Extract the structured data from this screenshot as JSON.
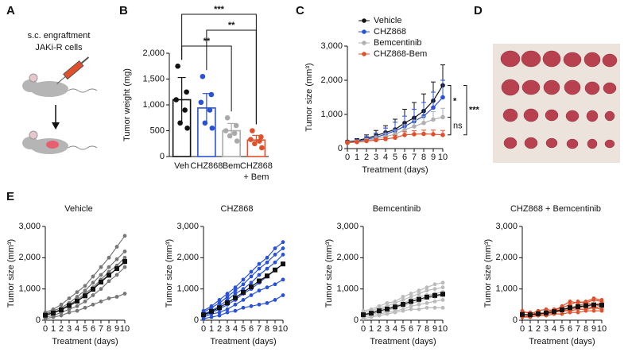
{
  "panel_labels": [
    "A",
    "B",
    "C",
    "D",
    "E"
  ],
  "schematic": {
    "line1": "s.c. engraftment",
    "line2": "JAKi-R cells"
  },
  "chart_data": [
    {
      "type": "bar_dot",
      "ylabel": "Tumor weight (mg)",
      "categories": [
        "Veh",
        "CHZ868",
        "Bem",
        "CHZ868\n+ Bem"
      ],
      "colors": [
        "#111111",
        "#2a52d6",
        "#aaaaaa",
        "#e0502a"
      ],
      "values": [
        1100,
        940,
        500,
        320
      ],
      "errors": [
        430,
        280,
        140,
        90
      ],
      "points": [
        [
          1750,
          1250,
          1100,
          900,
          650,
          550
        ],
        [
          1550,
          1200,
          1050,
          900,
          650,
          550
        ],
        [
          750,
          600,
          500,
          450,
          400,
          300
        ],
        [
          500,
          380,
          330,
          300,
          250,
          170
        ]
      ],
      "ylim": [
        0,
        2000
      ],
      "yticks": [
        0,
        500,
        {
          "value": 1000,
          "label": "1,000"
        },
        {
          "value": 1500,
          "label": "1,500"
        },
        {
          "value": 2000,
          "label": "2,000"
        }
      ],
      "annotations": [
        {
          "text": "***",
          "between": [
            0,
            3
          ]
        },
        {
          "text": "**",
          "between": [
            1,
            3
          ]
        },
        {
          "text": "**",
          "between": [
            0,
            2
          ]
        }
      ]
    },
    {
      "type": "line",
      "xlabel": "Treatment (days)",
      "ylabel": "Tumor size (mm³)",
      "x": [
        0,
        1,
        2,
        3,
        4,
        5,
        6,
        7,
        8,
        9,
        10
      ],
      "xlim": [
        0,
        10
      ],
      "xticks": [
        0,
        1,
        2,
        3,
        4,
        5,
        6,
        7,
        8,
        9,
        10
      ],
      "ylim": [
        0,
        3000
      ],
      "yticks": [
        0,
        {
          "value": 1000,
          "label": "1,000"
        },
        {
          "value": 2000,
          "label": "2,000"
        },
        {
          "value": 3000,
          "label": "3,000"
        }
      ],
      "legend": "upper left",
      "series": [
        {
          "name": "Vehicle",
          "color": "#111111",
          "values": [
            200,
            230,
            300,
            380,
            470,
            560,
            750,
            900,
            1100,
            1400,
            1850
          ],
          "errors": [
            30,
            60,
            100,
            150,
            200,
            300,
            400,
            450,
            500,
            550,
            600
          ]
        },
        {
          "name": "CHZ868",
          "color": "#2a52d6",
          "values": [
            180,
            210,
            270,
            330,
            420,
            520,
            650,
            800,
            950,
            1200,
            1500
          ],
          "errors": [
            30,
            50,
            80,
            120,
            180,
            250,
            300,
            350,
            400,
            450,
            500
          ]
        },
        {
          "name": "Bemcentinib",
          "color": "#b0b0b0",
          "values": [
            180,
            200,
            240,
            290,
            350,
            420,
            550,
            650,
            750,
            850,
            920
          ],
          "errors": [
            30,
            40,
            60,
            80,
            100,
            120,
            150,
            180,
            200,
            230,
            260
          ]
        },
        {
          "name": "CHZ868-Bem",
          "color": "#e0502a",
          "values": [
            170,
            190,
            220,
            250,
            280,
            320,
            400,
            420,
            430,
            420,
            400
          ],
          "errors": [
            20,
            30,
            40,
            50,
            60,
            70,
            90,
            100,
            110,
            120,
            130
          ]
        }
      ],
      "annotations": [
        {
          "text": "*",
          "between": [
            0,
            2
          ]
        },
        {
          "text": "ns",
          "between": [
            2,
            3
          ]
        },
        {
          "text": "***",
          "between": [
            0,
            3
          ]
        }
      ]
    },
    {
      "type": "line",
      "title": "Vehicle",
      "xlabel": "Treatment (days)",
      "ylabel": "Tumor size (mm³)",
      "x": [
        0,
        1,
        2,
        3,
        4,
        5,
        6,
        7,
        8,
        9,
        10
      ],
      "xlim": [
        0,
        10
      ],
      "xticks": [
        0,
        1,
        2,
        3,
        4,
        5,
        6,
        7,
        8,
        9,
        10
      ],
      "ylim": [
        0,
        3000
      ],
      "yticks": [
        0,
        {
          "value": 1000,
          "label": "1,000"
        },
        {
          "value": 2000,
          "label": "2,000"
        },
        {
          "value": 3000,
          "label": "3,000"
        }
      ],
      "series": [
        {
          "color": "#777777",
          "values": [
            250,
            350,
            500,
            700,
            900,
            1100,
            1400,
            1700,
            2000,
            2350,
            2700
          ]
        },
        {
          "color": "#777777",
          "values": [
            200,
            300,
            400,
            550,
            750,
            950,
            1200,
            1450,
            1700,
            1950,
            2200
          ]
        },
        {
          "color": "#777777",
          "values": [
            150,
            250,
            350,
            500,
            650,
            850,
            1050,
            1300,
            1550,
            1750,
            2000
          ]
        },
        {
          "color": "#777777",
          "values": [
            200,
            250,
            350,
            450,
            600,
            800,
            1000,
            1250,
            1450,
            1650,
            1850
          ]
        },
        {
          "color": "#777777",
          "values": [
            100,
            150,
            250,
            350,
            450,
            600,
            800,
            1000,
            1250,
            1450,
            1700
          ]
        },
        {
          "color": "#777777",
          "values": [
            50,
            100,
            150,
            250,
            300,
            400,
            500,
            600,
            700,
            750,
            850
          ]
        },
        {
          "color": "#111111",
          "marker": "square",
          "values": [
            160,
            230,
            330,
            470,
            610,
            780,
            990,
            1220,
            1440,
            1650,
            1880
          ]
        }
      ]
    },
    {
      "type": "line",
      "title": "CHZ868",
      "xlabel": "Treatment (days)",
      "ylabel": "Tumor size (mm³)",
      "x": [
        0,
        1,
        2,
        3,
        4,
        5,
        6,
        7,
        8,
        9,
        10
      ],
      "xlim": [
        0,
        10
      ],
      "xticks": [
        0,
        1,
        2,
        3,
        4,
        5,
        6,
        7,
        8,
        9,
        10
      ],
      "ylim": [
        0,
        3000
      ],
      "yticks": [
        0,
        {
          "value": 1000,
          "label": "1,000"
        },
        {
          "value": 2000,
          "label": "2,000"
        },
        {
          "value": 3000,
          "label": "3,000"
        }
      ],
      "series": [
        {
          "color": "#2a52d6",
          "values": [
            300,
            450,
            650,
            850,
            1050,
            1300,
            1550,
            1800,
            2000,
            2300,
            2500
          ]
        },
        {
          "color": "#2a52d6",
          "values": [
            250,
            400,
            550,
            750,
            950,
            1150,
            1400,
            1650,
            1850,
            2100,
            2300
          ]
        },
        {
          "color": "#2a52d6",
          "values": [
            200,
            300,
            450,
            650,
            850,
            1000,
            1200,
            1450,
            1650,
            1850,
            2100
          ]
        },
        {
          "color": "#2a52d6",
          "values": [
            150,
            250,
            350,
            500,
            650,
            850,
            1000,
            1200,
            1400,
            1600,
            1800
          ]
        },
        {
          "color": "#2a52d6",
          "values": [
            100,
            200,
            250,
            350,
            500,
            650,
            800,
            950,
            1050,
            1150,
            1300
          ]
        },
        {
          "color": "#2a52d6",
          "values": [
            50,
            100,
            150,
            250,
            300,
            400,
            450,
            500,
            550,
            650,
            800
          ]
        },
        {
          "color": "#111111",
          "marker": "square",
          "values": [
            175,
            283,
            400,
            558,
            717,
            892,
            1067,
            1258,
            1417,
            1608,
            1800
          ]
        }
      ]
    },
    {
      "type": "line",
      "title": "Bemcentinib",
      "xlabel": "Treatment (days)",
      "ylabel": "Tumor size (mm³)",
      "x": [
        0,
        1,
        2,
        3,
        4,
        5,
        6,
        7,
        8,
        9,
        10
      ],
      "xlim": [
        0,
        10
      ],
      "xticks": [
        0,
        1,
        2,
        3,
        4,
        5,
        6,
        7,
        8,
        9,
        10
      ],
      "ylim": [
        0,
        3000
      ],
      "yticks": [
        0,
        {
          "value": 1000,
          "label": "1,000"
        },
        {
          "value": 2000,
          "label": "2,000"
        },
        {
          "value": 3000,
          "label": "3,000"
        }
      ],
      "series": [
        {
          "color": "#bbbbbb",
          "values": [
            300,
            350,
            450,
            550,
            600,
            750,
            850,
            950,
            1050,
            1150,
            1200
          ]
        },
        {
          "color": "#bbbbbb",
          "values": [
            250,
            300,
            400,
            450,
            550,
            650,
            750,
            850,
            950,
            1000,
            1050
          ]
        },
        {
          "color": "#bbbbbb",
          "values": [
            200,
            250,
            350,
            400,
            450,
            550,
            650,
            750,
            800,
            850,
            900
          ]
        },
        {
          "color": "#bbbbbb",
          "values": [
            150,
            200,
            250,
            300,
            400,
            450,
            550,
            600,
            700,
            750,
            800
          ]
        },
        {
          "color": "#bbbbbb",
          "values": [
            100,
            150,
            200,
            250,
            300,
            350,
            450,
            500,
            550,
            600,
            650
          ]
        },
        {
          "color": "#bbbbbb",
          "values": [
            50,
            100,
            150,
            200,
            250,
            300,
            350,
            350,
            400,
            400,
            400
          ]
        },
        {
          "color": "#111111",
          "marker": "square",
          "values": [
            175,
            225,
            300,
            358,
            425,
            508,
            600,
            667,
            742,
            792,
            833
          ]
        }
      ]
    },
    {
      "type": "line",
      "title": "CHZ868 + Bemcentinib",
      "xlabel": "Treatment (days)",
      "ylabel": "Tumor size (mm³)",
      "x": [
        0,
        1,
        2,
        3,
        4,
        5,
        6,
        7,
        8,
        9,
        10
      ],
      "xlim": [
        0,
        10
      ],
      "xticks": [
        0,
        1,
        2,
        3,
        4,
        5,
        6,
        7,
        8,
        9,
        10
      ],
      "ylim": [
        0,
        3000
      ],
      "yticks": [
        0,
        {
          "value": 1000,
          "label": "1,000"
        },
        {
          "value": 2000,
          "label": "2,000"
        },
        {
          "value": 3000,
          "label": "3,000"
        }
      ],
      "series": [
        {
          "color": "#e0502a",
          "values": [
            300,
            200,
            300,
            350,
            300,
            450,
            600,
            550,
            600,
            700,
            650
          ]
        },
        {
          "color": "#e0502a",
          "values": [
            250,
            250,
            200,
            250,
            350,
            400,
            500,
            600,
            550,
            650,
            600
          ]
        },
        {
          "color": "#e0502a",
          "values": [
            200,
            150,
            250,
            200,
            300,
            350,
            400,
            450,
            550,
            500,
            550
          ]
        },
        {
          "color": "#e0502a",
          "values": [
            150,
            200,
            150,
            250,
            250,
            300,
            350,
            400,
            450,
            400,
            450
          ]
        },
        {
          "color": "#e0502a",
          "values": [
            100,
            150,
            200,
            200,
            250,
            300,
            300,
            350,
            350,
            400,
            350
          ]
        },
        {
          "color": "#e0502a",
          "values": [
            100,
            100,
            150,
            150,
            200,
            200,
            250,
            250,
            300,
            300,
            300
          ]
        },
        {
          "color": "#111111",
          "marker": "square",
          "values": [
            183,
            175,
            208,
            233,
            275,
            333,
            400,
            433,
            467,
            492,
            483
          ]
        }
      ]
    }
  ]
}
